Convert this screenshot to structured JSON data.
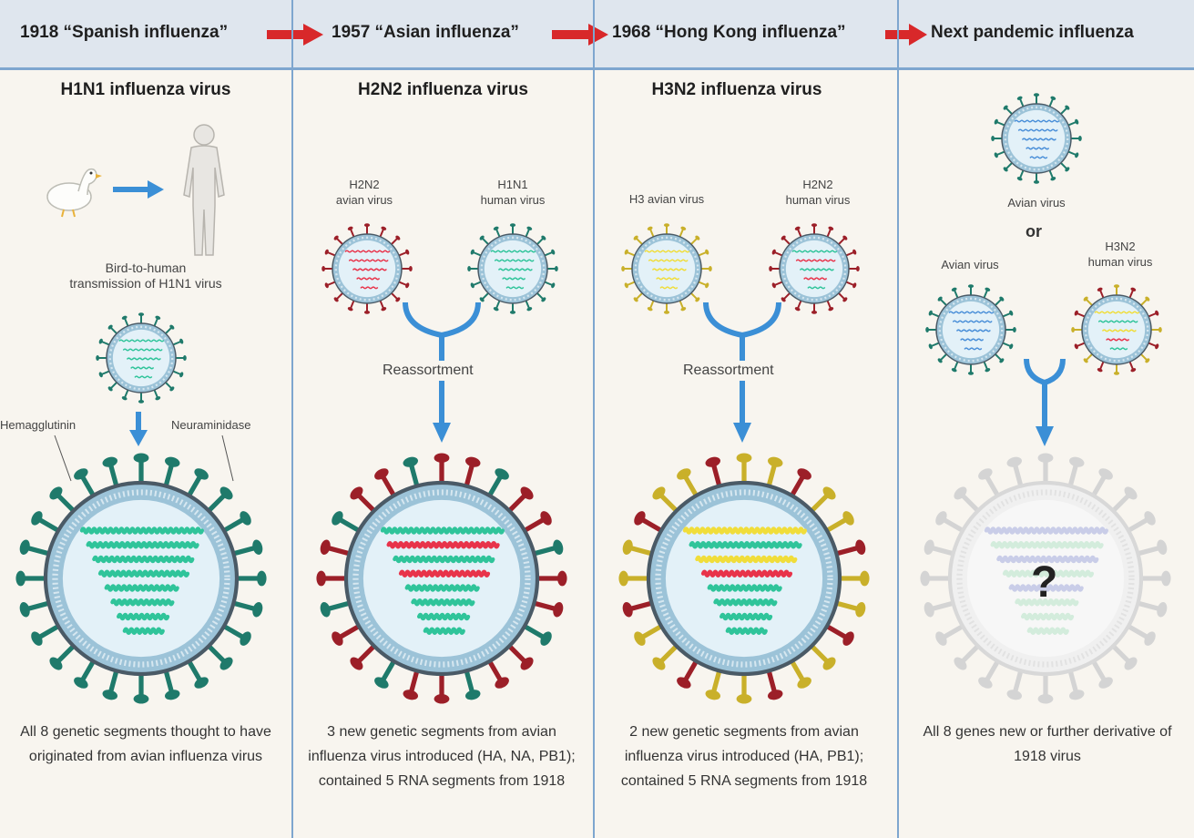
{
  "header": {
    "eras": [
      "1918 “Spanish influenza”",
      "1957 “Asian influenza”",
      "1968 “Hong Kong influenza”",
      "Next pandemic influenza"
    ]
  },
  "columns": [
    {
      "title": "H1N1 influenza virus",
      "transmission_label": "Bird-to-human\ntransmission of H1N1 virus",
      "hemagglutinin_label": "Hemagglutinin",
      "neuraminidase_label": "Neuraminidase",
      "caption": "All 8 genetic segments thought to have originated from avian influenza virus"
    },
    {
      "title": "H2N2 influenza virus",
      "left_parent_label": "H2N2\navian virus",
      "right_parent_label": "H1N1\nhuman virus",
      "reassortment_label": "Reassortment",
      "caption": "3 new genetic segments from avian influenza virus introduced (HA, NA, PB1); contained 5 RNA segments from 1918"
    },
    {
      "title": "H3N2 influenza virus",
      "left_parent_label": "H3 avian virus",
      "right_parent_label": "H2N2\nhuman virus",
      "reassortment_label": "Reassortment",
      "caption": "2 new genetic segments from avian influenza virus introduced (HA, PB1); contained 5 RNA segments from 1918"
    },
    {
      "top_label": "Avian virus",
      "or_label": "or",
      "left_parent_label": "Avian virus",
      "right_parent_label": "H3N2\nhuman virus",
      "unknown_mark": "?",
      "caption": "All 8 genes new or further derivative of 1918 virus"
    }
  ],
  "colors": {
    "divider": "#7ea6cf",
    "header_bg": "#dfe6ee",
    "red_arrow": "#d8282a",
    "blue_arrow": "#3b8fd6",
    "teal": "#1f7a6b",
    "rna_teal": "#2fc49a",
    "dark_red": "#9c1f28",
    "rna_red": "#e8334a",
    "gold": "#c9b02a",
    "rna_yellow": "#f0dd3a",
    "blue_rna": "#4a8fd8",
    "faded": "#d4d4d4"
  }
}
